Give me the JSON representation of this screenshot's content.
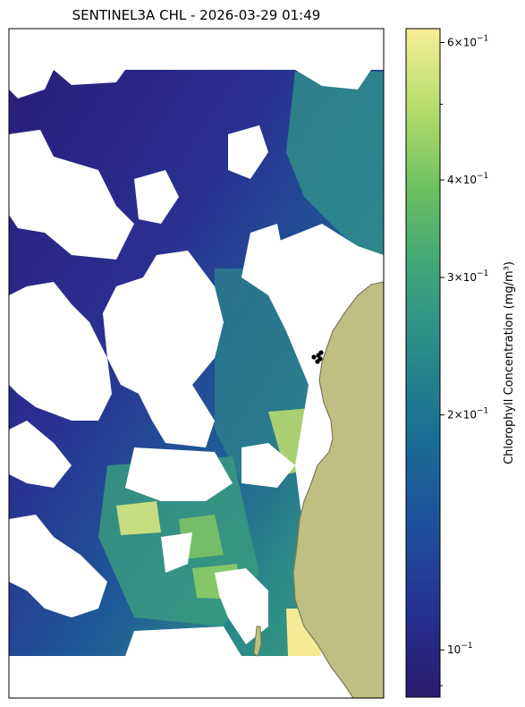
{
  "title": "SENTINEL3A CHL - 2026-03-29 01:49",
  "colorbar": {
    "label": "Chlorophyll Concentration (mg/m³)",
    "scale": "log",
    "vmin": 0.087,
    "vmax": 0.625,
    "ticks": [
      {
        "value": 0.1,
        "mantissa": "",
        "exp": "−1"
      },
      {
        "value": 0.2,
        "mantissa": "2",
        "exp": "−1"
      },
      {
        "value": 0.3,
        "mantissa": "3",
        "exp": "−1"
      },
      {
        "value": 0.4,
        "mantissa": "4",
        "exp": "−1"
      },
      {
        "value": 0.6,
        "mantissa": "6",
        "exp": "−1"
      }
    ],
    "minor_ticks": [
      0.09,
      0.5
    ],
    "colormap": [
      "#2a1a6b",
      "#25308f",
      "#1e4f9c",
      "#1a6b96",
      "#2a8a8a",
      "#3fa57a",
      "#6cc060",
      "#b5dd6d",
      "#f6ee98"
    ]
  },
  "colors": {
    "land": "#bfbf84",
    "land_edge": "#7a7a55",
    "cloud": "#ffffff",
    "station": "#000000"
  }
}
